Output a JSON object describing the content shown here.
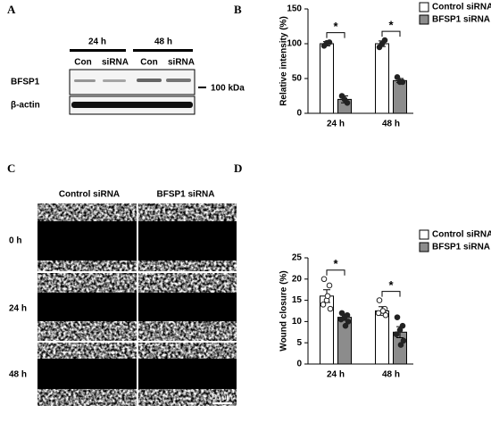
{
  "figure": {
    "labels": [
      "A",
      "B",
      "C",
      "D"
    ]
  },
  "blot": {
    "time_labels": [
      "24 h",
      "48 h"
    ],
    "lane_labels": [
      "Con",
      "siRNA",
      "Con",
      "siRNA"
    ],
    "row_labels": [
      "BFSP1",
      "β-actin"
    ],
    "marker": "100 kDa"
  },
  "micrographs": {
    "column_labels": [
      "Control siRNA",
      "BFSP1 siRNA"
    ],
    "row_labels": [
      "0 h",
      "24 h",
      "48 h"
    ],
    "scale_bar": "50 μm"
  },
  "chart_data": [
    {
      "type": "bar",
      "y_label": "Relative intensity (%)",
      "categories": [
        "24 h",
        "48 h"
      ],
      "series": [
        {
          "name": "Control siRNA",
          "color": "#ffffff",
          "values": [
            100,
            100
          ],
          "errors": [
            3,
            4
          ],
          "points": [
            [
              97,
              102,
              101
            ],
            [
              95,
              105,
              100
            ]
          ]
        },
        {
          "name": "BFSP1 siRNA",
          "color": "#8c8c8c",
          "values": [
            20,
            47
          ],
          "errors": [
            5,
            3
          ],
          "points": [
            [
              25,
              15,
              20
            ],
            [
              52,
              45,
              45
            ]
          ]
        }
      ],
      "significance": [
        "*",
        "*"
      ],
      "ylim": [
        0,
        150
      ],
      "yticks": [
        0,
        50,
        100,
        150
      ],
      "legend": "top-right"
    },
    {
      "type": "bar",
      "y_label": "Wound closure (%)",
      "categories": [
        "24 h",
        "48 h"
      ],
      "series": [
        {
          "name": "Control siRNA",
          "color": "#ffffff",
          "values": [
            16,
            12.5
          ],
          "errors": [
            1.5,
            1
          ],
          "points": [
            [
              20,
              18.5,
              15,
              14,
              13,
              16
            ],
            [
              15,
              13,
              12,
              12,
              11.5,
              12.5
            ]
          ]
        },
        {
          "name": "BFSP1 siRNA",
          "color": "#8c8c8c",
          "values": [
            11,
            7.5
          ],
          "errors": [
            0.7,
            1.3
          ],
          "points": [
            [
              12,
              11.5,
              11,
              10.5,
              10,
              9
            ],
            [
              11,
              9,
              8,
              7,
              5.5,
              4.5
            ]
          ]
        }
      ],
      "significance": [
        "*",
        "*"
      ],
      "ylim": [
        0,
        25
      ],
      "yticks": [
        0,
        5,
        10,
        15,
        20,
        25
      ],
      "legend": "top-right"
    }
  ]
}
